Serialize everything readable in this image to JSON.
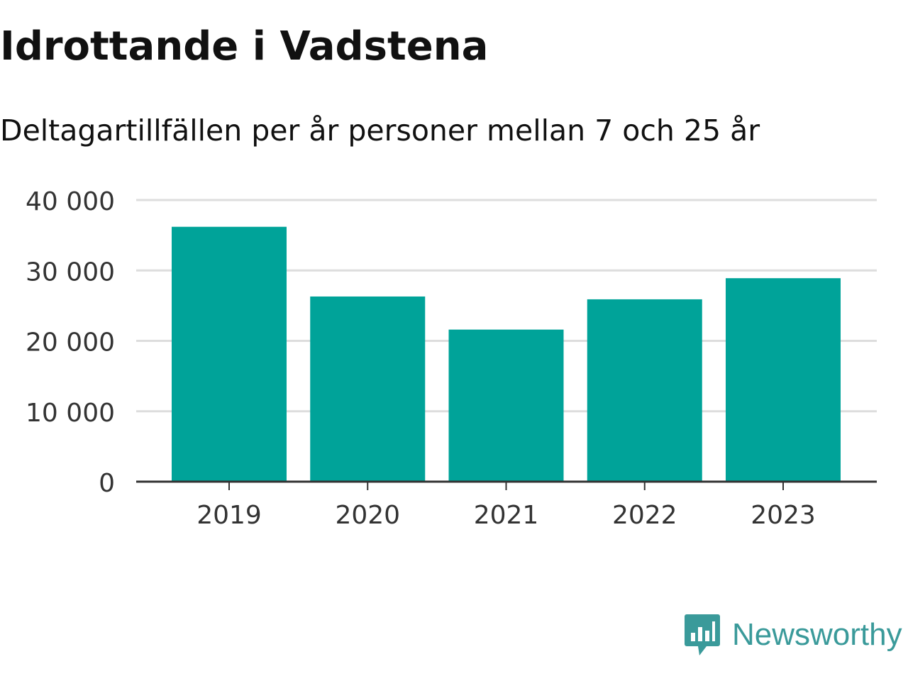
{
  "title": "Idrottande i Vadstena",
  "subtitle": "Deltagartillfällen per år personer mellan 7 och 25 år",
  "brand": {
    "name": "Newsworthy",
    "icon": "newsworthy-logo-icon",
    "color": "#3a9a9a"
  },
  "chart_data": {
    "type": "bar",
    "categories": [
      "2019",
      "2020",
      "2021",
      "2022",
      "2023"
    ],
    "values": [
      36200,
      26300,
      21600,
      25900,
      28900
    ],
    "ylim": [
      0,
      40000
    ],
    "yticks": [
      0,
      10000,
      20000,
      30000,
      40000
    ],
    "ytick_labels": [
      "0",
      "10 000",
      "20 000",
      "30 000",
      "40 000"
    ],
    "grid": true,
    "bar_color": "#00a399",
    "xlabel": "",
    "ylabel": ""
  }
}
